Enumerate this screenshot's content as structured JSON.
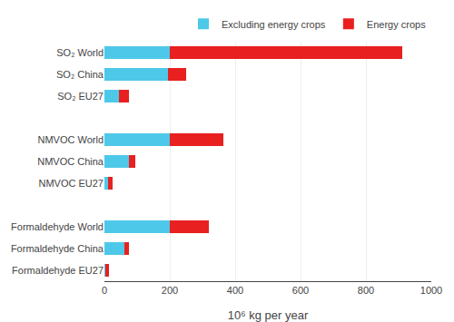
{
  "chart_data": {
    "type": "bar",
    "orientation": "horizontal",
    "stacked": true,
    "categories": [
      "SO₂ World",
      "SO₂ China",
      "SO₂ EU27",
      null,
      "NMVOC World",
      "NMVOC China",
      "NMVOC EU27",
      null,
      "Formaldehyde World",
      "Formaldehyde China",
      "Formaldehyde EU27"
    ],
    "series": [
      {
        "name": "Excluding energy crops",
        "color": "#4EC8E8",
        "values": [
          200,
          195,
          45,
          0,
          200,
          75,
          10,
          0,
          200,
          60,
          3
        ]
      },
      {
        "name": "Energy crops",
        "color": "#E82020",
        "values": [
          710,
          55,
          30,
          0,
          165,
          20,
          15,
          0,
          120,
          15,
          12
        ]
      }
    ],
    "xlabel": "10⁶ kg per year",
    "xlim": [
      0,
      1000
    ],
    "xticks": [
      0,
      200,
      400,
      600,
      800,
      1000
    ],
    "grid": true,
    "legend": "upper right"
  }
}
